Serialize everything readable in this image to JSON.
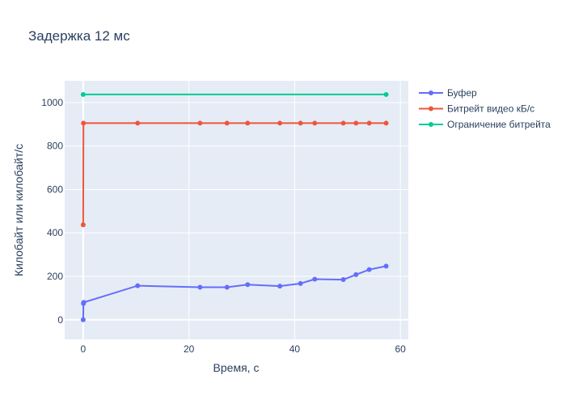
{
  "chart_data": {
    "type": "line",
    "title": "Задержка 12 мс",
    "xlabel": "Время, с",
    "ylabel": "Килобайт или килобайт/с",
    "xlim": [
      -3.5,
      61.5
    ],
    "ylim": [
      -90,
      1100
    ],
    "x_ticks": [
      0,
      20,
      40,
      60
    ],
    "y_ticks": [
      0,
      200,
      400,
      600,
      800,
      1000
    ],
    "grid": true,
    "legend_position": "right",
    "series": [
      {
        "name": "Буфер",
        "color": "#636efa",
        "x": [
          0,
          0.05,
          0.1,
          10.3,
          22.1,
          27.2,
          31.1,
          37.2,
          41.1,
          43.8,
          49.2,
          51.6,
          54.1,
          57.3
        ],
        "y": [
          0,
          75,
          80,
          157,
          150,
          150,
          162,
          155,
          167,
          187,
          185,
          208,
          231,
          247
        ]
      },
      {
        "name": "Битрейт видео кБ/с",
        "color": "#ef553b",
        "x": [
          0,
          0.05,
          10.3,
          22.1,
          27.2,
          31.1,
          37.2,
          41.1,
          43.8,
          49.2,
          51.6,
          54.1,
          57.3
        ],
        "y": [
          437,
          905,
          905,
          905,
          905,
          905,
          905,
          905,
          905,
          905,
          905,
          905,
          905
        ]
      },
      {
        "name": "Ограничение битрейта",
        "color": "#00cc96",
        "x": [
          0,
          57.3
        ],
        "y": [
          1037,
          1037
        ]
      }
    ]
  }
}
